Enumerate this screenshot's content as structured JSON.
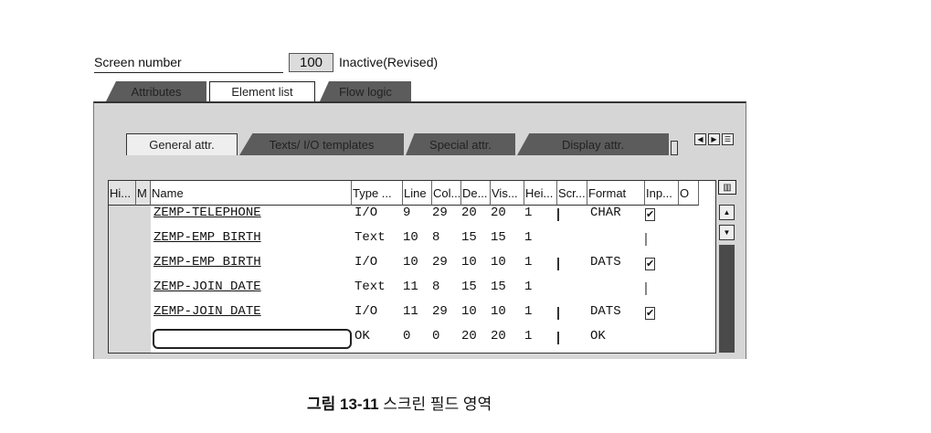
{
  "header": {
    "screen_number_label": "Screen number",
    "screen_number": "100",
    "status": "Inactive(Revised)"
  },
  "outer_tabs": [
    {
      "label": "Attributes",
      "active": false
    },
    {
      "label": "Element list",
      "active": true
    },
    {
      "label": "Flow logic",
      "active": false
    }
  ],
  "inner_tabs": [
    {
      "label": "General attr.",
      "active": true
    },
    {
      "label": "Texts/ I/O templates",
      "active": false
    },
    {
      "label": "Special attr.",
      "active": false
    },
    {
      "label": "Display attr.",
      "active": false
    }
  ],
  "table": {
    "columns": [
      "Hi...",
      "M",
      "Name",
      "Type ...",
      "Line",
      "Col...",
      "De...",
      "Vis...",
      "Hei...",
      "Scr...",
      "Format",
      "Inp...",
      "O"
    ],
    "rows": [
      {
        "name": "ZEMP-TELEPHONE",
        "type": "I/O",
        "line": "9",
        "col": "29",
        "def": "20",
        "vis": "20",
        "hei": "1",
        "scr": "unchecked",
        "format": "CHAR",
        "inp": "checked"
      },
      {
        "name": "ZEMP-EMP_BIRTH",
        "type": "Text",
        "line": "10",
        "col": "8",
        "def": "15",
        "vis": "15",
        "hei": "1",
        "scr": "none",
        "format": "",
        "inp": "disabled"
      },
      {
        "name": "ZEMP-EMP_BIRTH",
        "type": "I/O",
        "line": "10",
        "col": "29",
        "def": "10",
        "vis": "10",
        "hei": "1",
        "scr": "unchecked",
        "format": "DATS",
        "inp": "checked"
      },
      {
        "name": "ZEMP-JOIN_DATE",
        "type": "Text",
        "line": "11",
        "col": "8",
        "def": "15",
        "vis": "15",
        "hei": "1",
        "scr": "none",
        "format": "",
        "inp": "disabled"
      },
      {
        "name": "ZEMP-JOIN_DATE",
        "type": "I/O",
        "line": "11",
        "col": "29",
        "def": "10",
        "vis": "10",
        "hei": "1",
        "scr": "unchecked",
        "format": "DATS",
        "inp": "checked"
      },
      {
        "name": "",
        "type": "OK",
        "line": "0",
        "col": "0",
        "def": "20",
        "vis": "20",
        "hei": "1",
        "scr": "unchecked",
        "format": "OK",
        "inp": "none"
      }
    ]
  },
  "caption": {
    "figure": "그림 13-11",
    "title": "스크린 필드 영역"
  }
}
